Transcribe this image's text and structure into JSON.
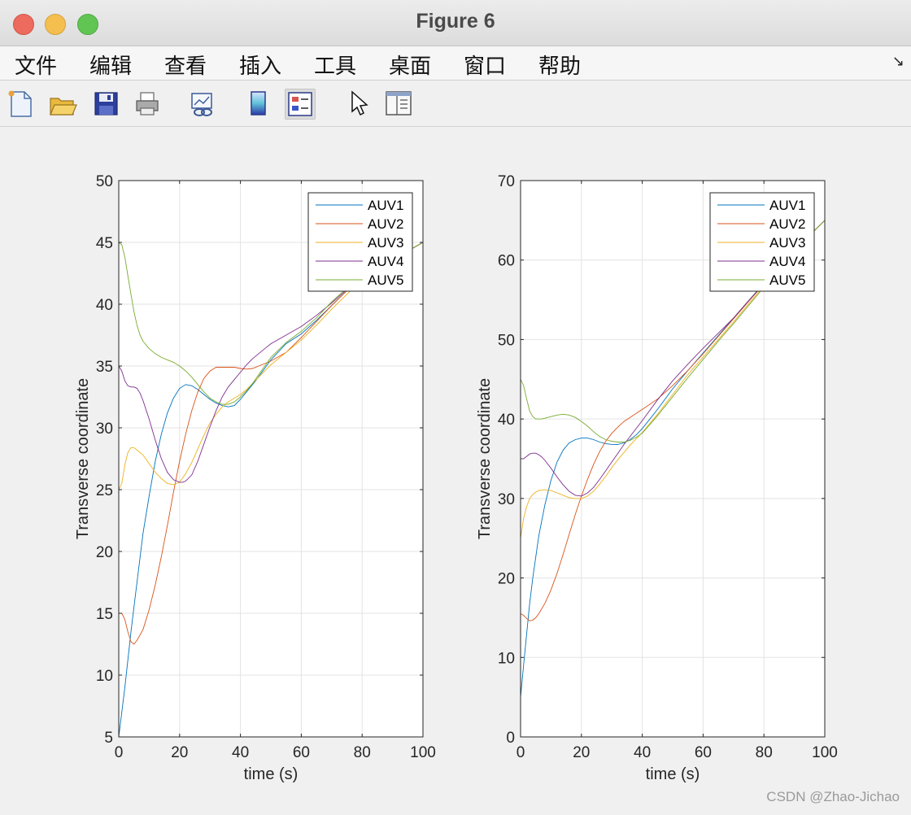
{
  "window": {
    "title": "Figure 6"
  },
  "menu": [
    "文件",
    "编辑",
    "查看",
    "插入",
    "工具",
    "桌面",
    "窗口",
    "帮助"
  ],
  "menu_corner": "↘",
  "toolbar": [
    "new-figure",
    "open-file",
    "save",
    "print",
    "link-plot",
    "insert-colorbar",
    "insert-legend",
    "edit-plot-pointer",
    "property-inspector"
  ],
  "watermark": "CSDN @Zhao-Jichao",
  "colors": {
    "AUV1": "#0072bd",
    "AUV2": "#d95319",
    "AUV3": "#edb120",
    "AUV4": "#7e2f8e",
    "AUV5": "#77ac30"
  },
  "chart_data": [
    {
      "type": "line",
      "xlabel": "time (s)",
      "ylabel": "Transverse coordinate",
      "xlim": [
        0,
        100
      ],
      "ylim": [
        5,
        50
      ],
      "xticks": [
        0,
        20,
        40,
        60,
        80,
        100
      ],
      "yticks": [
        5,
        10,
        15,
        20,
        25,
        30,
        35,
        40,
        45,
        50
      ],
      "grid": true,
      "legend": "top-right",
      "series": [
        {
          "name": "AUV1",
          "x": [
            0,
            2,
            4,
            6,
            8,
            10,
            12,
            14,
            16,
            18,
            20,
            22,
            24,
            26,
            28,
            30,
            32,
            34,
            36,
            38,
            40,
            45,
            50,
            55,
            60,
            65,
            70,
            75,
            80,
            85,
            90,
            95,
            100
          ],
          "y": [
            5,
            9,
            13.5,
            17.5,
            21.5,
            24.5,
            27.3,
            29.5,
            31.2,
            32.4,
            33.2,
            33.5,
            33.4,
            33.1,
            32.7,
            32.3,
            32,
            31.8,
            31.7,
            31.8,
            32.3,
            33.8,
            35.5,
            36.8,
            37.6,
            38.7,
            39.9,
            41.1,
            42.2,
            43,
            43.6,
            44.3,
            45
          ]
        },
        {
          "name": "AUV2",
          "x": [
            0,
            1,
            2,
            3,
            4,
            5,
            6,
            8,
            10,
            12,
            14,
            16,
            18,
            20,
            22,
            24,
            26,
            28,
            30,
            32,
            34,
            36,
            38,
            40,
            42,
            44,
            46,
            48,
            50,
            55,
            60,
            65,
            70,
            75,
            80,
            85,
            90,
            95,
            100
          ],
          "y": [
            15,
            15,
            14.5,
            13.5,
            12.7,
            12.5,
            12.8,
            13.7,
            15.3,
            17.3,
            19.6,
            22.1,
            24.8,
            27.3,
            29.5,
            31.4,
            32.9,
            34,
            34.6,
            34.9,
            34.9,
            34.9,
            34.9,
            34.8,
            34.75,
            34.8,
            35,
            35.2,
            35.4,
            36.1,
            37.3,
            38.6,
            39.9,
            41.1,
            42.2,
            43,
            43.6,
            44.3,
            45
          ]
        },
        {
          "name": "AUV3",
          "x": [
            0,
            1,
            2,
            3,
            4,
            5,
            6,
            8,
            10,
            12,
            14,
            16,
            18,
            20,
            22,
            24,
            26,
            28,
            30,
            32,
            34,
            36,
            38,
            40,
            42,
            44,
            46,
            48,
            50,
            55,
            60,
            65,
            70,
            75,
            80,
            85,
            90,
            95,
            100
          ],
          "y": [
            25,
            25.5,
            27,
            28,
            28.4,
            28.4,
            28.2,
            27.8,
            27.1,
            26.4,
            25.9,
            25.5,
            25.4,
            25.6,
            26.3,
            27.2,
            28.3,
            29.4,
            30.4,
            31.1,
            31.7,
            32.1,
            32.4,
            32.7,
            33.1,
            33.6,
            34.1,
            34.6,
            35.1,
            36.1,
            37.1,
            38.3,
            39.6,
            40.8,
            42,
            42.9,
            43.6,
            44.3,
            45
          ]
        },
        {
          "name": "AUV4",
          "x": [
            0,
            1,
            2,
            3,
            4,
            5,
            6,
            7,
            8,
            10,
            12,
            14,
            16,
            18,
            20,
            21,
            22,
            24,
            26,
            28,
            30,
            32,
            34,
            36,
            38,
            40,
            42,
            44,
            46,
            48,
            50,
            55,
            60,
            65,
            70,
            75,
            80,
            85,
            90,
            95,
            100
          ],
          "y": [
            35,
            34.6,
            33.8,
            33.4,
            33.3,
            33.3,
            33.2,
            32.8,
            32.2,
            30.7,
            29,
            27.5,
            26.4,
            25.8,
            25.6,
            25.6,
            25.7,
            26.2,
            27.3,
            28.7,
            30.1,
            31.4,
            32.5,
            33.3,
            33.9,
            34.5,
            35.1,
            35.6,
            36,
            36.4,
            36.8,
            37.5,
            38.2,
            39.1,
            40.1,
            41.2,
            42.3,
            43.1,
            43.7,
            44.3,
            45
          ]
        },
        {
          "name": "AUV5",
          "x": [
            0,
            1,
            2,
            3,
            4,
            5,
            6,
            7,
            8,
            10,
            12,
            14,
            16,
            18,
            20,
            22,
            24,
            26,
            28,
            30,
            32,
            34,
            36,
            38,
            40,
            42,
            44,
            46,
            48,
            50,
            55,
            60,
            65,
            70,
            75,
            80,
            85,
            90,
            95,
            100
          ],
          "y": [
            45,
            44.8,
            43.8,
            42.3,
            40.8,
            39.4,
            38.3,
            37.5,
            37,
            36.4,
            36,
            35.7,
            35.5,
            35.3,
            35,
            34.6,
            34.1,
            33.5,
            32.9,
            32.4,
            32.1,
            31.9,
            31.9,
            32.1,
            32.5,
            33,
            33.6,
            34.3,
            35,
            35.7,
            36.9,
            37.8,
            38.9,
            40.2,
            41.3,
            42.2,
            43,
            43.6,
            44.3,
            45
          ]
        }
      ]
    },
    {
      "type": "line",
      "xlabel": "time (s)",
      "ylabel": "Transverse coordinate",
      "xlim": [
        0,
        100
      ],
      "ylim": [
        0,
        70
      ],
      "xticks": [
        0,
        20,
        40,
        60,
        80,
        100
      ],
      "yticks": [
        0,
        10,
        20,
        30,
        40,
        50,
        60,
        70
      ],
      "grid": true,
      "legend": "top-right",
      "series": [
        {
          "name": "AUV1",
          "x": [
            0,
            1,
            2,
            3,
            4,
            6,
            8,
            10,
            12,
            14,
            16,
            18,
            20,
            22,
            24,
            26,
            28,
            30,
            32,
            34,
            36,
            38,
            40,
            45,
            50,
            55,
            60,
            65,
            70,
            75,
            80,
            85,
            90,
            95,
            100
          ],
          "y": [
            5,
            9,
            13,
            16.8,
            20,
            25.3,
            29.2,
            32.3,
            34.6,
            36.1,
            37,
            37.4,
            37.6,
            37.6,
            37.4,
            37.1,
            36.9,
            36.8,
            36.8,
            37,
            37.4,
            38,
            38.8,
            41.2,
            43.8,
            46.1,
            48.3,
            50.5,
            52.7,
            54.9,
            57.1,
            59.2,
            61.2,
            63.1,
            65
          ]
        },
        {
          "name": "AUV2",
          "x": [
            0,
            1,
            2,
            3,
            4,
            5,
            6,
            8,
            10,
            12,
            14,
            16,
            18,
            20,
            22,
            24,
            26,
            28,
            30,
            32,
            34,
            36,
            38,
            40,
            45,
            50,
            55,
            60,
            65,
            70,
            75,
            80,
            85,
            90,
            95,
            100
          ],
          "y": [
            15.5,
            15.3,
            14.9,
            14.6,
            14.7,
            15,
            15.5,
            16.8,
            18.5,
            20.6,
            23,
            25.5,
            28,
            30.3,
            32.4,
            34.3,
            35.9,
            37.2,
            38.2,
            39,
            39.7,
            40.2,
            40.7,
            41.2,
            42.5,
            44.2,
            46.1,
            48.2,
            50.4,
            52.6,
            54.8,
            57,
            59.1,
            61.1,
            63.1,
            65
          ]
        },
        {
          "name": "AUV3",
          "x": [
            0,
            1,
            2,
            3,
            4,
            5,
            6,
            8,
            10,
            12,
            14,
            16,
            18,
            20,
            22,
            24,
            26,
            28,
            30,
            32,
            34,
            36,
            38,
            40,
            45,
            50,
            55,
            60,
            65,
            70,
            75,
            80,
            85,
            90,
            95,
            100
          ],
          "y": [
            25,
            27.5,
            29,
            30,
            30.5,
            30.8,
            31,
            31.1,
            31,
            30.7,
            30.4,
            30.1,
            30,
            30,
            30.3,
            30.9,
            31.8,
            32.8,
            33.9,
            34.9,
            35.8,
            36.7,
            37.5,
            38.3,
            40.6,
            43.1,
            45.6,
            47.8,
            50,
            52.2,
            54.5,
            56.8,
            59,
            61.1,
            63.1,
            65
          ]
        },
        {
          "name": "AUV4",
          "x": [
            0,
            1,
            2,
            3,
            4,
            5,
            6,
            7,
            8,
            10,
            12,
            14,
            16,
            18,
            20,
            22,
            24,
            26,
            28,
            30,
            32,
            34,
            36,
            38,
            40,
            45,
            50,
            55,
            60,
            65,
            70,
            75,
            80,
            85,
            90,
            95,
            100
          ],
          "y": [
            35,
            35,
            35.3,
            35.6,
            35.7,
            35.7,
            35.5,
            35.2,
            34.8,
            33.8,
            32.7,
            31.7,
            30.9,
            30.4,
            30.3,
            30.7,
            31.4,
            32.4,
            33.5,
            34.6,
            35.7,
            36.8,
            37.8,
            38.8,
            39.8,
            42.4,
            44.8,
            46.9,
            48.9,
            50.8,
            52.7,
            54.9,
            57,
            59.1,
            61.1,
            63.1,
            65
          ]
        },
        {
          "name": "AUV5",
          "x": [
            0,
            1,
            2,
            3,
            4,
            5,
            6,
            7,
            8,
            10,
            12,
            14,
            16,
            18,
            20,
            22,
            24,
            26,
            28,
            30,
            32,
            34,
            36,
            38,
            40,
            45,
            50,
            55,
            60,
            65,
            70,
            75,
            80,
            85,
            90,
            95,
            100
          ],
          "y": [
            45,
            44.2,
            42.5,
            41,
            40.3,
            40,
            40,
            40,
            40.1,
            40.3,
            40.5,
            40.6,
            40.5,
            40.2,
            39.7,
            39.1,
            38.4,
            37.8,
            37.4,
            37.2,
            37.1,
            37.1,
            37.3,
            37.7,
            38.2,
            40.4,
            42.8,
            45.2,
            47.5,
            49.8,
            52,
            54.3,
            56.6,
            58.8,
            61,
            63.1,
            65
          ]
        }
      ]
    }
  ]
}
